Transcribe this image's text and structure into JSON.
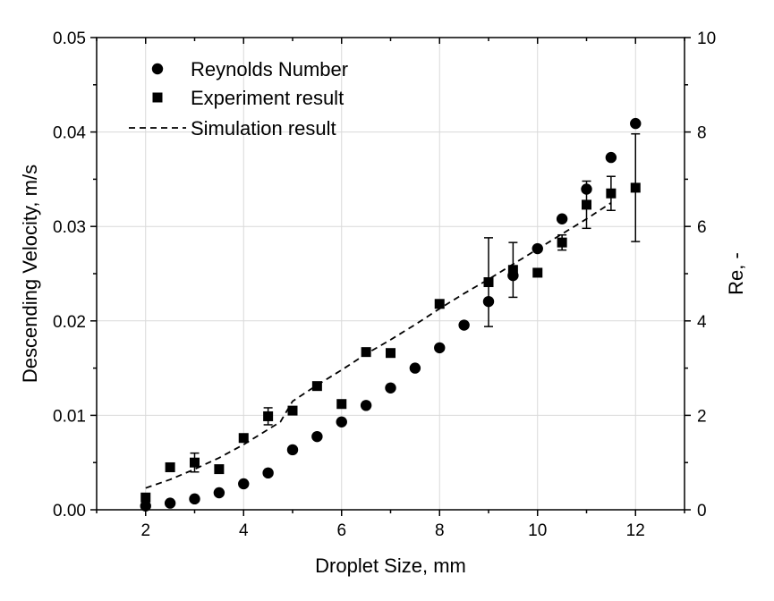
{
  "chart_data": {
    "type": "scatter",
    "xlabel": "Droplet Size, mm",
    "ylabel": "Descending Velocity, m/s",
    "y2label": "Re, -",
    "xlim": [
      1,
      13
    ],
    "ylim": [
      0,
      0.05
    ],
    "y2lim": [
      0,
      10
    ],
    "xticks": [
      2,
      4,
      6,
      8,
      10,
      12
    ],
    "xtick_labels": [
      "2",
      "4",
      "6",
      "8",
      "10",
      "12"
    ],
    "yticks": [
      0,
      0.01,
      0.02,
      0.03,
      0.04,
      0.05
    ],
    "ytick_labels": [
      "0.00",
      "0.01",
      "0.02",
      "0.03",
      "0.04",
      "0.05"
    ],
    "y2ticks": [
      0,
      2,
      4,
      6,
      8,
      10
    ],
    "y2tick_labels": [
      "0",
      "2",
      "4",
      "6",
      "8",
      "10"
    ],
    "grid": true,
    "legend_position": "top-left",
    "series": [
      {
        "name": "Reynolds Number",
        "marker": "circle",
        "axis": "right",
        "x": [
          2,
          2.5,
          3,
          3.5,
          4,
          4.5,
          5,
          5.5,
          6,
          6.5,
          7,
          7.5,
          8,
          8.5,
          9,
          9.5,
          10,
          10.5,
          11,
          11.5,
          12
        ],
        "y": [
          0.08,
          0.14,
          0.23,
          0.36,
          0.55,
          0.78,
          1.27,
          1.55,
          1.86,
          2.21,
          2.58,
          3.0,
          3.43,
          3.91,
          4.41,
          4.96,
          5.53,
          6.16,
          6.79,
          7.46,
          8.18
        ]
      },
      {
        "name": "Experiment result",
        "marker": "square",
        "axis": "left",
        "x": [
          2,
          2.5,
          3,
          3.5,
          4,
          4.5,
          5,
          5.5,
          6,
          6.5,
          7,
          8,
          9,
          9.5,
          10,
          10.5,
          11,
          11.5,
          12
        ],
        "y": [
          0.0013,
          0.0045,
          0.005,
          0.0043,
          0.0076,
          0.0099,
          0.0105,
          0.0131,
          0.0112,
          0.0167,
          0.0166,
          0.0218,
          0.0241,
          0.0254,
          0.0251,
          0.0283,
          0.0323,
          0.0335,
          0.0341
        ],
        "yerr": [
          0.0002,
          0.0002,
          0.001,
          0.0002,
          0.0002,
          0.0009,
          0.0002,
          0.0002,
          0.0002,
          0.0002,
          0.0002,
          0.0002,
          0.0047,
          0.0029,
          0.0002,
          0.0008,
          0.0025,
          0.0018,
          0.0057
        ]
      },
      {
        "name": "Simulation result",
        "style": "dashed",
        "axis": "left",
        "x": [
          2,
          2.5,
          3,
          3.5,
          4,
          4.5,
          4.75,
          5,
          5.5,
          6,
          6.5,
          7,
          7.5,
          8,
          8.5,
          9,
          9.5,
          10,
          10.5,
          11,
          11.5
        ],
        "y": [
          0.0023,
          0.0032,
          0.0043,
          0.0055,
          0.0069,
          0.0085,
          0.0093,
          0.0115,
          0.0132,
          0.0148,
          0.0165,
          0.018,
          0.0196,
          0.0213,
          0.0229,
          0.0244,
          0.026,
          0.0276,
          0.0292,
          0.0308,
          0.0325
        ]
      }
    ]
  }
}
